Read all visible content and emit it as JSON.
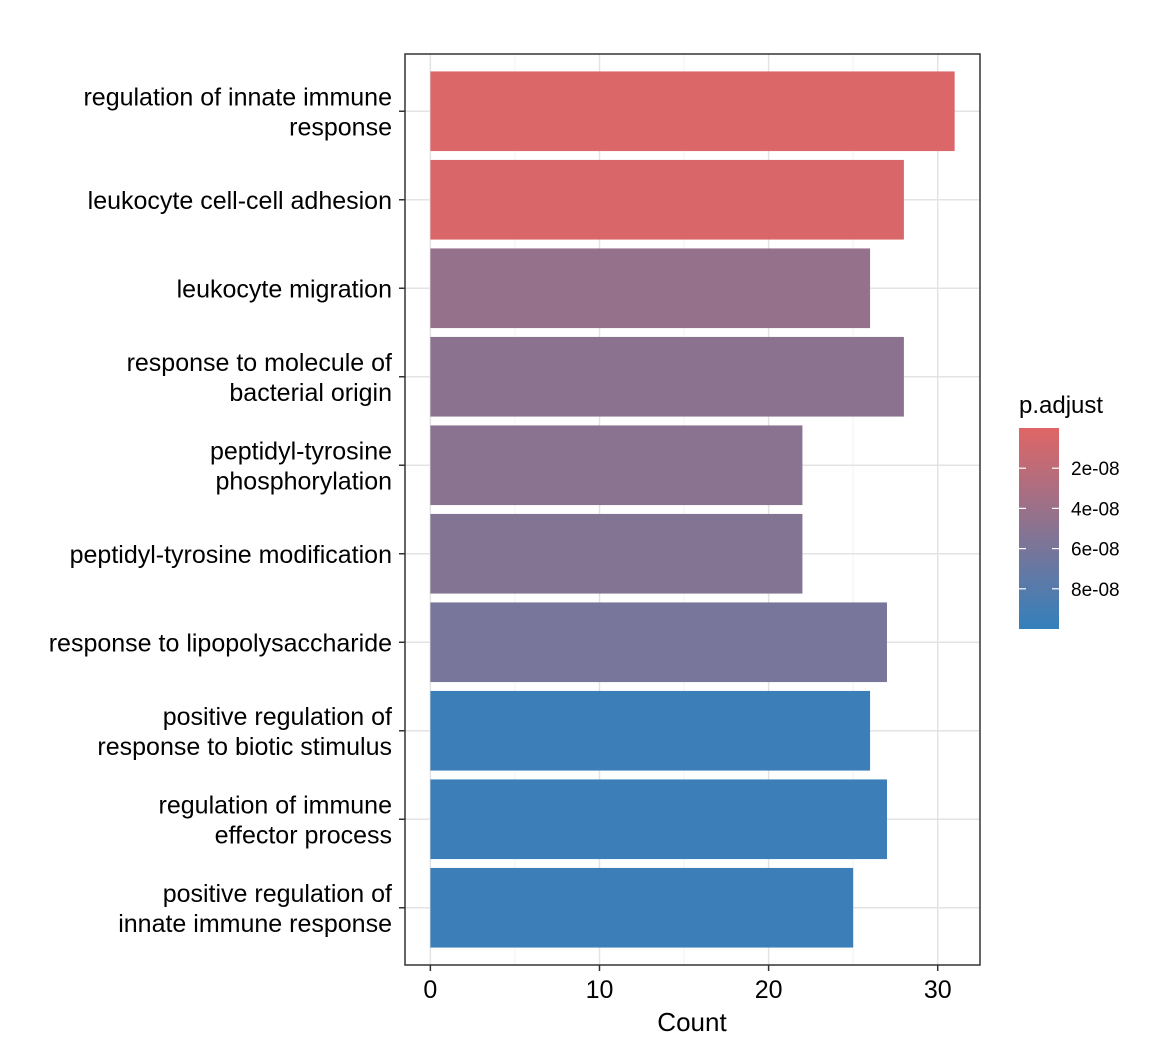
{
  "chart_data": {
    "type": "bar",
    "orientation": "horizontal",
    "categories": [
      [
        "regulation of innate immune",
        "response"
      ],
      [
        "leukocyte cell-cell adhesion"
      ],
      [
        "leukocyte migration"
      ],
      [
        "response to molecule of",
        "bacterial origin"
      ],
      [
        "peptidyl-tyrosine",
        "phosphorylation"
      ],
      [
        "peptidyl-tyrosine modification"
      ],
      [
        "response to lipopolysaccharide"
      ],
      [
        "positive regulation of",
        "response to biotic stimulus"
      ],
      [
        "regulation of immune",
        "effector process"
      ],
      [
        "positive regulation of",
        "innate immune response"
      ]
    ],
    "values": [
      31,
      28,
      26,
      28,
      22,
      22,
      27,
      26,
      27,
      25
    ],
    "p_adjust": [
      3e-09,
      4e-09,
      4.3e-08,
      4.9e-08,
      5e-08,
      5.3e-08,
      6e-08,
      9.5e-08,
      9.5e-08,
      9.5e-08
    ],
    "xlabel": "Count",
    "ylabel": "",
    "xlim": [
      -1.5,
      32.5
    ],
    "xticks": [
      0,
      10,
      20,
      30
    ],
    "xtick_labels": [
      "0",
      "10",
      "20",
      "30"
    ],
    "grid": true,
    "legend": {
      "title": "p.adjust",
      "placement": "right",
      "type": "gradient",
      "domain": [
        0,
        1e-07
      ],
      "color_low": "#E06666",
      "color_high": "#3380BC",
      "ticks": [
        2e-08,
        4e-08,
        6e-08,
        8e-08
      ],
      "tick_labels": [
        "2e-08",
        "4e-08",
        "6e-08",
        "8e-08"
      ]
    }
  }
}
